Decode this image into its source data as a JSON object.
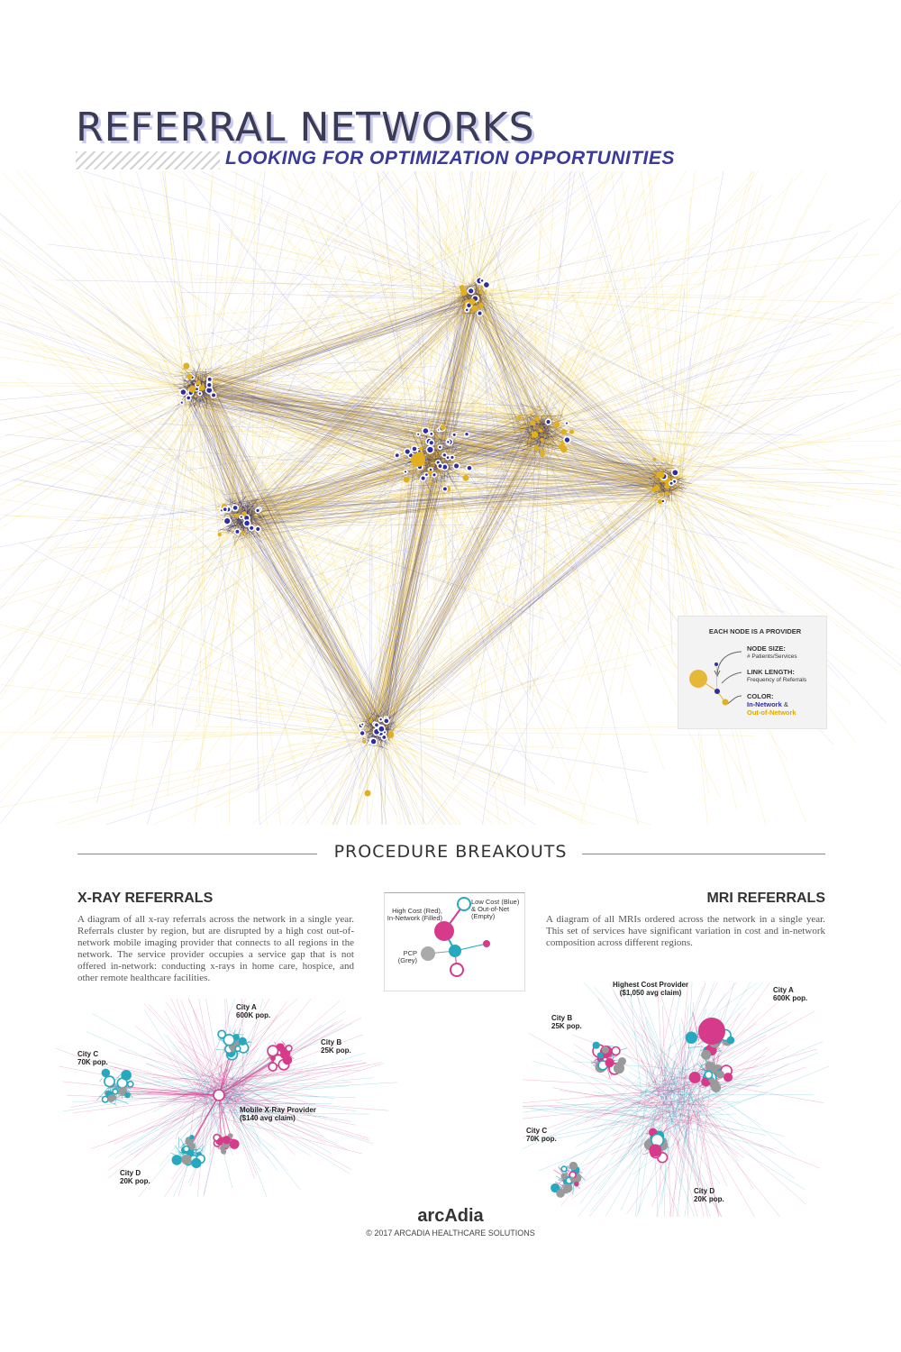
{
  "header": {
    "title": "REFERRAL NETWORKS",
    "subtitle": "LOOKING FOR OPTIMIZATION OPPORTUNITIES"
  },
  "colors": {
    "in_network": "#2e2ea0",
    "out_of_network": "#e0b020",
    "high_cost": "#d63a8a",
    "low_cost": "#26a8bf",
    "pcp": "#9a9a9a"
  },
  "legend": {
    "heading": "EACH NODE IS A PROVIDER",
    "node_size_label": "NODE SIZE:",
    "node_size_desc": "# Patients/Services",
    "link_length_label": "LINK LENGTH:",
    "link_length_desc": "Frequency of Referrals",
    "color_label": "COLOR:",
    "in_network": "In-Network",
    "amp": "&",
    "out_of_network": "Out-of-Network"
  },
  "breakouts_title": "PROCEDURE BREAKOUTS",
  "key": {
    "high_cost": "High Cost (Red), In-Network (Filled)",
    "low_cost": "Low Cost (Blue) & Out-of-Net (Empty)",
    "pcp": "PCP (Grey)"
  },
  "xray": {
    "title": "X-RAY REFERRALS",
    "description": "A diagram of all x-ray referrals across the network in a single year. Referrals cluster by region, but are disrupted by a high cost out-of-network mobile imaging provider that connects to all regions in the network. The service provider occupies a service gap that is not offered in-network: conducting x-rays in home care, hospice, and other remote healthcare facilities.",
    "labels": {
      "city_a": "City A",
      "city_a_pop": "600K pop.",
      "city_b": "City B",
      "city_b_pop": "25K pop.",
      "city_c": "City C",
      "city_c_pop": "70K pop.",
      "city_d": "City D",
      "city_d_pop": "20K pop.",
      "provider": "Mobile X-Ray Provider",
      "provider_cost": "($140 avg claim)"
    }
  },
  "mri": {
    "title": "MRI REFERRALS",
    "description": "A diagram of all MRIs ordered across the network in a single year. This set of services have significant variation in cost and in-network composition across different regions.",
    "labels": {
      "provider": "Highest Cost Provider",
      "provider_cost": "($1,050 avg claim)",
      "city_a": "City A",
      "city_a_pop": "600K pop.",
      "city_b": "City B",
      "city_b_pop": "25K pop.",
      "city_c": "City C",
      "city_c_pop": "70K pop.",
      "city_d": "City D",
      "city_d_pop": "20K pop."
    }
  },
  "footer": {
    "logo": "arcAdia",
    "copyright": "© 2017 ARCADIA HEALTHCARE SOLUTIONS"
  }
}
